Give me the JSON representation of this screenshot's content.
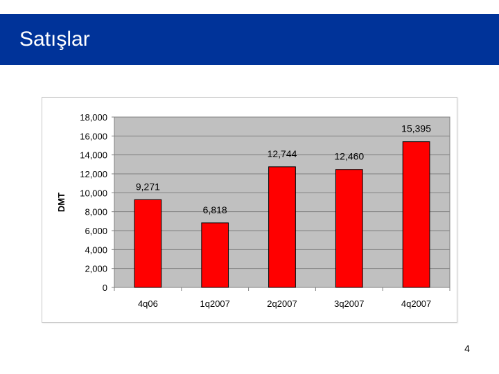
{
  "slide": {
    "title": "Satışlar",
    "page_number": "4"
  },
  "colors": {
    "title_bar": "#003399",
    "bar_fill": "#ff0000",
    "plot_background": "#c0c0c0"
  },
  "chart_data": {
    "type": "bar",
    "title": "",
    "xlabel": "",
    "ylabel": "DMT",
    "categories": [
      "4q06",
      "1q2007",
      "2q2007",
      "3q2007",
      "4q2007"
    ],
    "values": [
      9271,
      6818,
      12744,
      12460,
      15395
    ],
    "value_labels": [
      "9,271",
      "6,818",
      "12,744",
      "12,460",
      "15,395"
    ],
    "ylim": [
      0,
      18000
    ],
    "yticks": [
      0,
      2000,
      4000,
      6000,
      8000,
      10000,
      12000,
      14000,
      16000,
      18000
    ],
    "ytick_labels": [
      "0",
      "2,000",
      "4,000",
      "6,000",
      "8,000",
      "10,000",
      "12,000",
      "14,000",
      "16,000",
      "18,000"
    ],
    "grid": true,
    "legend": "none"
  }
}
